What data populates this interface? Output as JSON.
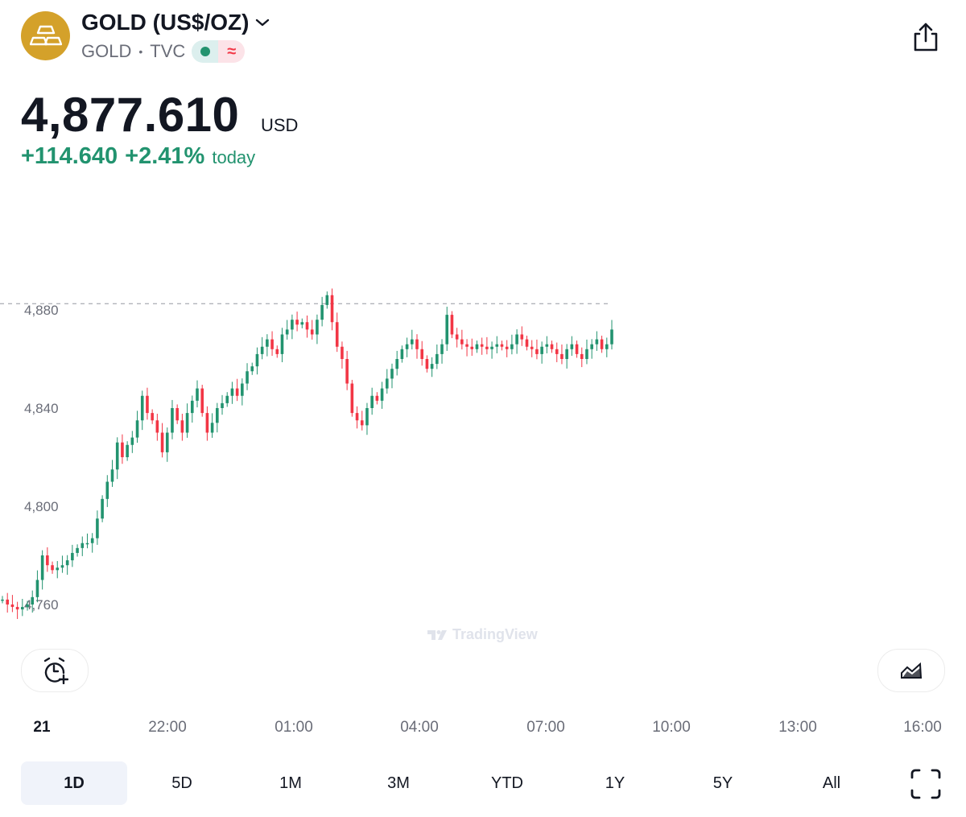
{
  "header": {
    "title": "GOLD (US$/OZ)",
    "ticker": "GOLD",
    "exchange": "TVC",
    "status_delayed_symbol": "≈",
    "logo_color": "#d4a12a"
  },
  "quote": {
    "price": "4,877.610",
    "currency": "USD",
    "change": "+114.640",
    "change_percent": "+2.41%",
    "change_period": "today",
    "up_color": "#22936f",
    "down_color": "#f23645"
  },
  "chart": {
    "watermark": "TradingView",
    "time_labels": [
      "21",
      "22:00",
      "01:00",
      "04:00",
      "07:00",
      "10:00",
      "13:00",
      "16:00"
    ]
  },
  "chart_data": {
    "type": "candlestick",
    "x_ticks": [
      "21",
      "22:00",
      "01:00",
      "04:00",
      "07:00",
      "10:00",
      "13:00",
      "16:00"
    ],
    "y_ticks": [
      4760,
      4800,
      4840,
      4880
    ],
    "y_tick_labels": [
      "4,760",
      "4,800",
      "4,840",
      "4,880"
    ],
    "ylim": [
      4755,
      4890
    ],
    "last_price_line": 4877.61,
    "close_path": [
      [
        0,
        4762
      ],
      [
        1,
        4760
      ],
      [
        2,
        4759
      ],
      [
        3,
        4758
      ],
      [
        4,
        4759
      ],
      [
        5,
        4760
      ],
      [
        6,
        4763
      ],
      [
        7,
        4770
      ],
      [
        8,
        4780
      ],
      [
        9,
        4776
      ],
      [
        10,
        4774
      ],
      [
        11,
        4775
      ],
      [
        12,
        4776
      ],
      [
        13,
        4778
      ],
      [
        14,
        4781
      ],
      [
        15,
        4783
      ],
      [
        16,
        4785
      ],
      [
        17,
        4785
      ],
      [
        18,
        4787
      ],
      [
        19,
        4795
      ],
      [
        20,
        4803
      ],
      [
        21,
        4810
      ],
      [
        22,
        4815
      ],
      [
        23,
        4826
      ],
      [
        24,
        4820
      ],
      [
        25,
        4825
      ],
      [
        26,
        4828
      ],
      [
        27,
        4835
      ],
      [
        28,
        4845
      ],
      [
        29,
        4838
      ],
      [
        30,
        4835
      ],
      [
        31,
        4830
      ],
      [
        32,
        4822
      ],
      [
        33,
        4830
      ],
      [
        34,
        4840
      ],
      [
        35,
        4835
      ],
      [
        36,
        4830
      ],
      [
        37,
        4838
      ],
      [
        38,
        4843
      ],
      [
        39,
        4848
      ],
      [
        40,
        4838
      ],
      [
        41,
        4830
      ],
      [
        42,
        4834
      ],
      [
        43,
        4840
      ],
      [
        44,
        4842
      ],
      [
        45,
        4845
      ],
      [
        46,
        4848
      ],
      [
        47,
        4845
      ],
      [
        48,
        4850
      ],
      [
        49,
        4855
      ],
      [
        50,
        4857
      ],
      [
        51,
        4862
      ],
      [
        52,
        4865
      ],
      [
        53,
        4868
      ],
      [
        54,
        4864
      ],
      [
        55,
        4862
      ],
      [
        56,
        4870
      ],
      [
        57,
        4872
      ],
      [
        58,
        4876
      ],
      [
        59,
        4874
      ],
      [
        60,
        4875
      ],
      [
        61,
        4872
      ],
      [
        62,
        4870
      ],
      [
        63,
        4876
      ],
      [
        64,
        4882
      ],
      [
        65,
        4886
      ],
      [
        66,
        4875
      ],
      [
        67,
        4865
      ],
      [
        68,
        4860
      ],
      [
        69,
        4850
      ],
      [
        70,
        4838
      ],
      [
        71,
        4835
      ],
      [
        72,
        4833
      ],
      [
        73,
        4840
      ],
      [
        74,
        4845
      ],
      [
        75,
        4843
      ],
      [
        76,
        4848
      ],
      [
        77,
        4852
      ],
      [
        78,
        4856
      ],
      [
        79,
        4860
      ],
      [
        80,
        4864
      ],
      [
        81,
        4866
      ],
      [
        82,
        4868
      ],
      [
        83,
        4864
      ],
      [
        84,
        4860
      ],
      [
        85,
        4856
      ],
      [
        86,
        4858
      ],
      [
        87,
        4862
      ],
      [
        88,
        4866
      ],
      [
        89,
        4878
      ],
      [
        90,
        4870
      ],
      [
        91,
        4868
      ],
      [
        92,
        4866
      ],
      [
        93,
        4865
      ],
      [
        94,
        4864
      ],
      [
        95,
        4866
      ],
      [
        96,
        4865
      ],
      [
        97,
        4864
      ],
      [
        98,
        4865
      ],
      [
        99,
        4866
      ],
      [
        100,
        4865
      ],
      [
        101,
        4864
      ],
      [
        102,
        4866
      ],
      [
        103,
        4870
      ],
      [
        104,
        4868
      ],
      [
        105,
        4865
      ],
      [
        106,
        4864
      ],
      [
        107,
        4862
      ],
      [
        108,
        4865
      ],
      [
        109,
        4866
      ],
      [
        110,
        4864
      ],
      [
        111,
        4862
      ],
      [
        112,
        4860
      ],
      [
        113,
        4864
      ],
      [
        114,
        4866
      ],
      [
        115,
        4862
      ],
      [
        116,
        4860
      ],
      [
        117,
        4864
      ],
      [
        118,
        4866
      ],
      [
        119,
        4868
      ],
      [
        120,
        4864
      ],
      [
        121,
        4866
      ],
      [
        122,
        4872
      ]
    ]
  },
  "controls": {
    "alert_icon": "alarm-plus-icon",
    "chart_type_icon": "area-chart-icon",
    "share_icon": "share-icon",
    "fullscreen_icon": "fullscreen-icon"
  },
  "ranges": [
    {
      "label": "1D",
      "active": true
    },
    {
      "label": "5D",
      "active": false
    },
    {
      "label": "1M",
      "active": false
    },
    {
      "label": "3M",
      "active": false
    },
    {
      "label": "YTD",
      "active": false
    },
    {
      "label": "1Y",
      "active": false
    },
    {
      "label": "5Y",
      "active": false
    },
    {
      "label": "All",
      "active": false
    }
  ]
}
